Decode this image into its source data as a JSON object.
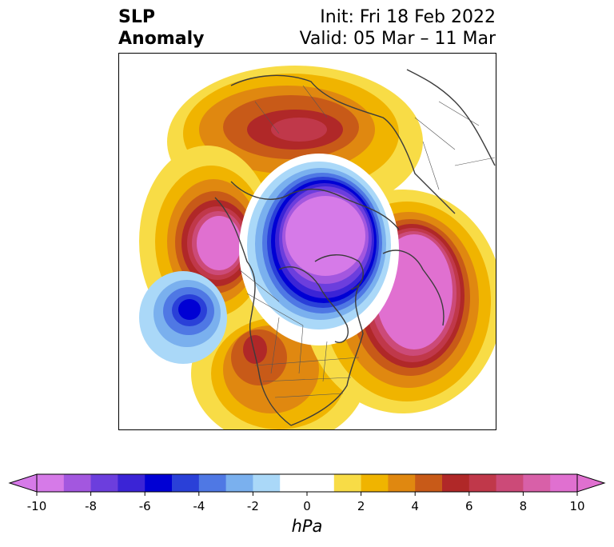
{
  "title": {
    "line1_left": "SLP",
    "line2_left": "Anomaly",
    "line1_right": "Init: Fri 18 Feb 2022",
    "line2_right": "Valid: 05 Mar – 11 Mar"
  },
  "colorbar": {
    "unit": "hPa",
    "ticks": [
      "-10",
      "-8",
      "-6",
      "-4",
      "-2",
      "0",
      "2",
      "4",
      "6",
      "8",
      "10"
    ],
    "bins": [
      {
        "range": [
          -10,
          -9
        ],
        "color": "#d67ae8"
      },
      {
        "range": [
          -9,
          -8
        ],
        "color": "#a357df"
      },
      {
        "range": [
          -8,
          -7
        ],
        "color": "#6c3edd"
      },
      {
        "range": [
          -7,
          -6
        ],
        "color": "#3b24d6"
      },
      {
        "range": [
          -6,
          -5
        ],
        "color": "#0000d4"
      },
      {
        "range": [
          -5,
          -4
        ],
        "color": "#2a40d8"
      },
      {
        "range": [
          -4,
          -3
        ],
        "color": "#4f78e4"
      },
      {
        "range": [
          -3,
          -2
        ],
        "color": "#7ab0ee"
      },
      {
        "range": [
          -2,
          -1
        ],
        "color": "#aad8f8"
      },
      {
        "range": [
          -1,
          1
        ],
        "color": "#ffffff"
      },
      {
        "range": [
          1,
          2
        ],
        "color": "#f8dc46"
      },
      {
        "range": [
          2,
          3
        ],
        "color": "#f0b400"
      },
      {
        "range": [
          3,
          4
        ],
        "color": "#e08810"
      },
      {
        "range": [
          4,
          5
        ],
        "color": "#c85a18"
      },
      {
        "range": [
          5,
          6
        ],
        "color": "#b02828"
      },
      {
        "range": [
          6,
          7
        ],
        "color": "#c0384a"
      },
      {
        "range": [
          7,
          8
        ],
        "color": "#cc4a78"
      },
      {
        "range": [
          8,
          9
        ],
        "color": "#d860a8"
      },
      {
        "range": [
          9,
          10
        ],
        "color": "#e070d0"
      }
    ],
    "extend_low_color": "#d67ae8",
    "extend_high_color": "#e070d0"
  },
  "map": {
    "field": "SLP Anomaly",
    "projection": "north-polar-stereographic",
    "anomaly_regions": [
      {
        "name": "east-pacific-high",
        "sign": "positive",
        "peak": 10
      },
      {
        "name": "arctic-low",
        "sign": "negative",
        "peak": -10
      },
      {
        "name": "north-atlantic-high",
        "sign": "positive",
        "peak": 10
      },
      {
        "name": "siberia-high",
        "sign": "positive",
        "peak": 6
      },
      {
        "name": "north-pacific-low",
        "sign": "negative",
        "peak": -6
      },
      {
        "name": "western-north-america-high",
        "sign": "positive",
        "peak": 5
      }
    ]
  }
}
